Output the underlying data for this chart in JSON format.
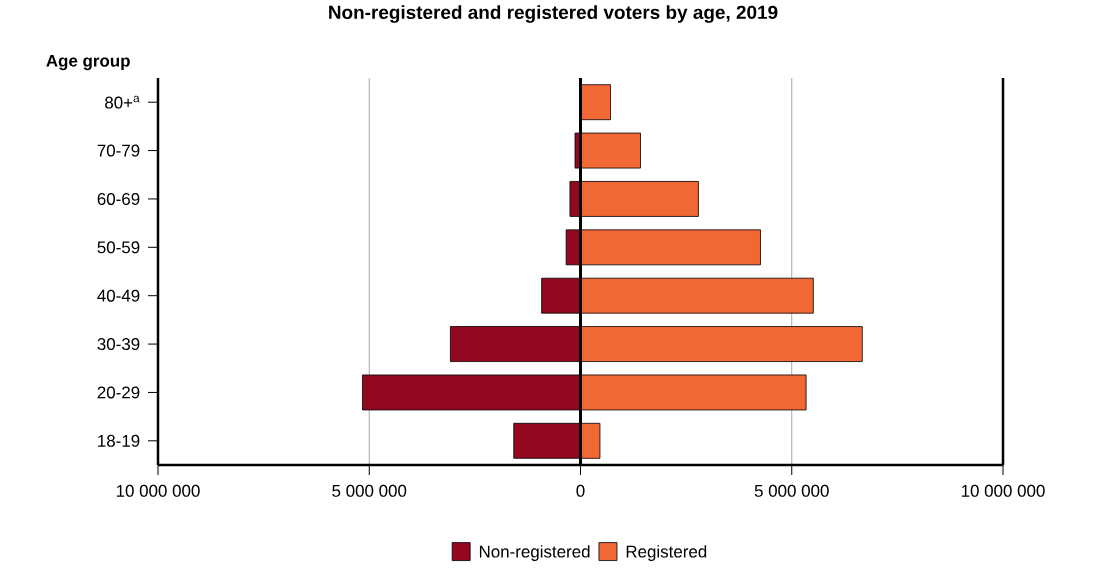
{
  "chart_data": {
    "type": "bar",
    "orientation": "horizontal",
    "title": "Non-registered and registered voters by age, 2019",
    "ylabel": "Age group",
    "categories": [
      "80+$^{a}$",
      "70-79",
      "60-69",
      "50-59",
      "40-49",
      "30-39",
      "20-29",
      "18-19"
    ],
    "series": [
      {
        "name": "Non-registered",
        "color": "#930820",
        "values": [
          null,
          -130000,
          -250000,
          -340000,
          -920000,
          -3080000,
          -5160000,
          -1580000
        ]
      },
      {
        "name": "Registered",
        "color": "#f26835",
        "values": [
          710000,
          1420000,
          2790000,
          4260000,
          5510000,
          6670000,
          5340000,
          460000
        ]
      }
    ],
    "xlim": [
      -10000000,
      10000000
    ],
    "xticks": [
      {
        "value": -10000000,
        "label": "10 000 000"
      },
      {
        "value": -5000000,
        "label": "5 000 000"
      },
      0,
      {
        "value": 5000000,
        "label": "5 000 000"
      },
      {
        "value": 10000000,
        "label": "10 000 000"
      }
    ],
    "grid": "x",
    "legend": "bottom",
    "stacked": true
  }
}
